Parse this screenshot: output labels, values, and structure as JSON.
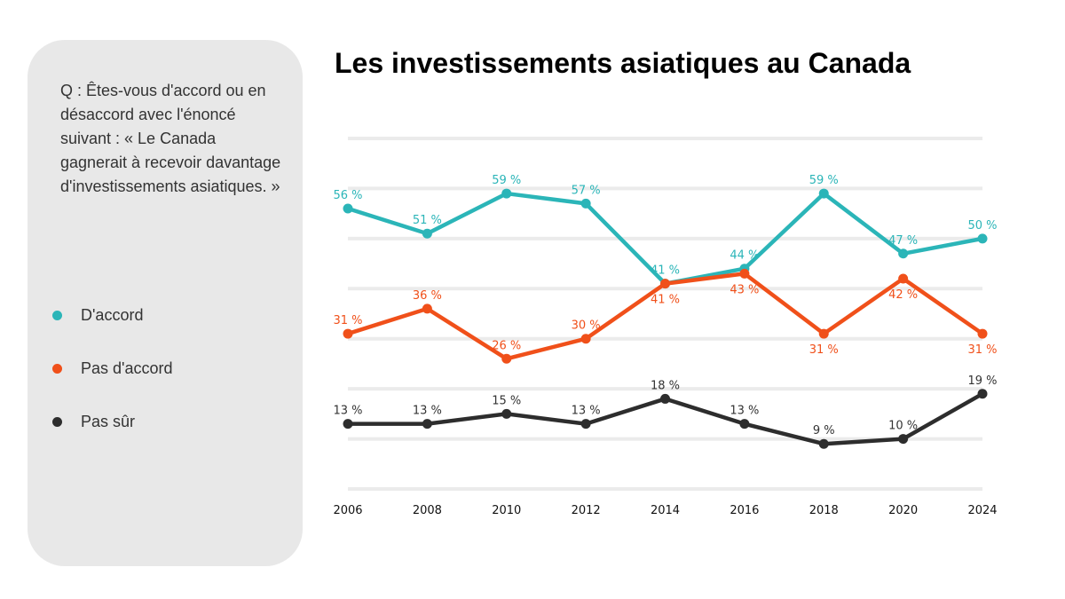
{
  "panel": {
    "question": "Q : Êtes-vous d'accord ou en désaccord avec l'énoncé suivant : « Le Canada gagnerait à recevoir davantage d'investissements asiatiques. »"
  },
  "chart_data": {
    "type": "line",
    "title": "Les investissements asiatiques au Canada",
    "xlabel": "",
    "ylabel": "",
    "categories": [
      "2006",
      "2008",
      "2010",
      "2012",
      "2014",
      "2016",
      "2018",
      "2020",
      "2024"
    ],
    "ylim": [
      0,
      70
    ],
    "grid": true,
    "legend_position": "left-panel",
    "series": [
      {
        "name": "D'accord",
        "color": "#2bb5b8",
        "values": [
          56,
          51,
          59,
          57,
          41,
          44,
          59,
          47,
          50
        ],
        "labels": [
          "56 %",
          "51 %",
          "59 %",
          "57 %",
          "41 %",
          "44 %",
          "59 %",
          "47 %",
          "50 %"
        ]
      },
      {
        "name": "Pas d'accord",
        "color": "#f0501a",
        "values": [
          31,
          36,
          26,
          30,
          41,
          43,
          31,
          42,
          31
        ],
        "labels": [
          "31 %",
          "36 %",
          "26 %",
          "30 %",
          "41 %",
          "43 %",
          "31 %",
          "42 %",
          "31 %"
        ]
      },
      {
        "name": "Pas sûr",
        "color": "#2d2d2d",
        "values": [
          13,
          13,
          15,
          13,
          18,
          13,
          9,
          10,
          19
        ],
        "labels": [
          "13 %",
          "13 %",
          "15 %",
          "13 %",
          "18 %",
          "13 %",
          "9 %",
          "10 %",
          "19 %"
        ]
      }
    ]
  }
}
